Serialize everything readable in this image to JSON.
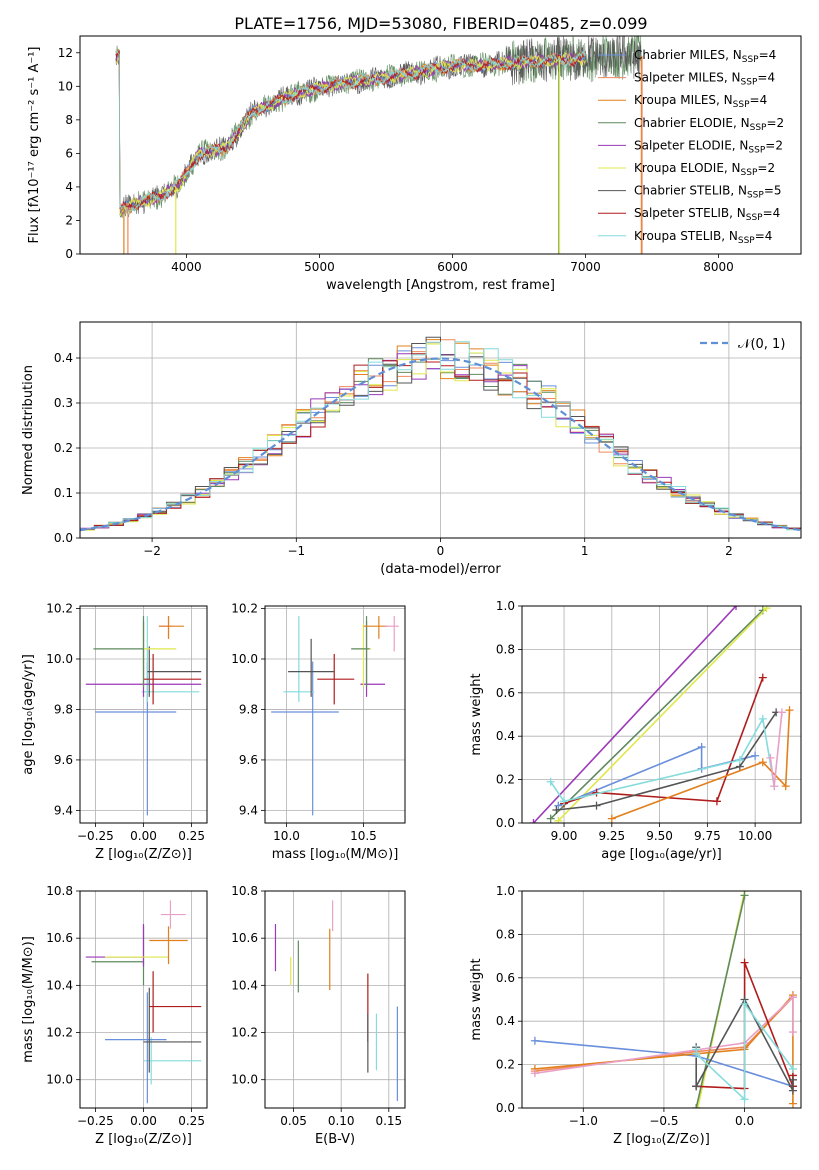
{
  "figure_title": "PLATE=1756, MJD=53080, FIBERID=0485, z=0.099",
  "colors": {
    "chab_miles": "#6a8fdc",
    "salp_miles": "#f08a5d",
    "krou_miles": "#e1801c",
    "chab_elodie": "#5f8a5f",
    "salp_elodie": "#9b39b9",
    "krou_elodie": "#dfe84a",
    "chab_stelib": "#555555",
    "salp_stelib": "#b01c1c",
    "krou_stelib": "#84dcdc",
    "pink": "#e8a0c8",
    "grid": "#b0b0b0",
    "gauss": "#5f8fd6"
  },
  "chart_data": [
    {
      "id": "spectrum",
      "type": "line",
      "title": "PLATE=1756, MJD=53080, FIBERID=0485, z=0.099",
      "xlabel": "wavelength [Angstrom, rest frame]",
      "ylabel": "Flux [fλ10⁻¹⁷ erg cm⁻² s⁻¹ A⁻¹]",
      "xlim": [
        3200,
        8620
      ],
      "ylim": [
        0,
        13
      ],
      "xticks": [
        "4000",
        "5000",
        "6000",
        "7000",
        "8000"
      ],
      "yticks": [
        "0",
        "2",
        "4",
        "6",
        "8",
        "10",
        "12"
      ],
      "grid": false,
      "legend_position": "upper-right",
      "continuum": {
        "x": [
          3500,
          3650,
          3800,
          3950,
          4100,
          4300,
          4500,
          4800,
          5100,
          5400,
          5700,
          6000,
          6300,
          6600,
          6900,
          7200,
          7420
        ],
        "y": [
          2.6,
          3.1,
          3.4,
          4.2,
          6.0,
          6.3,
          8.5,
          9.5,
          10.1,
          10.4,
          10.8,
          11.2,
          11.3,
          11.5,
          11.6,
          11.8,
          11.8
        ]
      },
      "series": [
        {
          "name": "Chabrier MILES, N$_{SSP}$=4",
          "label": "Chabrier MILES, N",
          "sub": "SSP",
          "value": "=4",
          "color_key": "chab_miles"
        },
        {
          "name": "Salpeter MILES, N$_{SSP}$=4",
          "label": "Salpeter MILES, N",
          "sub": "SSP",
          "value": "=4",
          "color_key": "salp_miles"
        },
        {
          "name": "Kroupa MILES, N$_{SSP}$=4",
          "label": "Kroupa MILES, N",
          "sub": "SSP",
          "value": "=4",
          "color_key": "krou_miles"
        },
        {
          "name": "Chabrier ELODIE, N$_{SSP}$=2",
          "label": "Chabrier ELODIE, N",
          "sub": "SSP",
          "value": "=2",
          "color_key": "chab_elodie"
        },
        {
          "name": "Salpeter ELODIE, N$_{SSP}$=2",
          "label": "Salpeter ELODIE, N",
          "sub": "SSP",
          "value": "=2",
          "color_key": "salp_elodie"
        },
        {
          "name": "Kroupa ELODIE, N$_{SSP}$=2",
          "label": "Kroupa ELODIE, N",
          "sub": "SSP",
          "value": "=2",
          "color_key": "krou_elodie"
        },
        {
          "name": "Chabrier STELIB, N$_{SSP}$=5",
          "label": "Chabrier STELIB, N",
          "sub": "SSP",
          "value": "=5",
          "color_key": "chab_stelib"
        },
        {
          "name": "Salpeter STELIB, N$_{SSP}$=4",
          "label": "Salpeter STELIB, N",
          "sub": "SSP",
          "value": "=4",
          "color_key": "salp_stelib"
        },
        {
          "name": "Kroupa STELIB, N$_{SSP}$=4",
          "label": "Kroupa STELIB, N",
          "sub": "SSP",
          "value": "=4",
          "color_key": "krou_stelib"
        }
      ]
    },
    {
      "id": "residuals",
      "type": "histogram",
      "xlabel": "(data-model)/error",
      "ylabel": "Normed distribution",
      "xlim": [
        -2.5,
        2.5
      ],
      "ylim": [
        0,
        0.48
      ],
      "xticks": [
        "−2",
        "−1",
        "0",
        "1",
        "2"
      ],
      "yticks": [
        "0.0",
        "0.1",
        "0.2",
        "0.3",
        "0.4"
      ],
      "grid": true,
      "legend": "𝒩(0, 1)",
      "legend_position": "upper-right",
      "bin_width": 0.1,
      "gaussian": {
        "mean": 0,
        "sigma": 1
      }
    },
    {
      "id": "age_vs_Z",
      "type": "errorbar",
      "xlabel": "Z [log₁₀(Z/Z⊙)]",
      "ylabel": "age  [log₁₀(age/yr)]",
      "xlim": [
        -0.33,
        0.33
      ],
      "ylim": [
        9.35,
        10.21
      ],
      "xticks": [
        "−0.25",
        "0.00",
        "0.25"
      ],
      "yticks": [
        "9.4",
        "9.6",
        "9.8",
        "10.0",
        "10.2"
      ],
      "grid": true,
      "points": [
        {
          "color_key": "chab_miles",
          "x": 0.02,
          "y": 9.79,
          "xerr": [
            0.27,
            0.15
          ],
          "yerr": [
            0.41,
            0.2
          ]
        },
        {
          "color_key": "krou_stelib",
          "x": 0.02,
          "y": 9.87,
          "xerr": [
            0.03,
            0.27
          ],
          "yerr": [
            0.04,
            0.3
          ]
        },
        {
          "color_key": "salp_elodie",
          "x": 0.0,
          "y": 9.9,
          "xerr": [
            0.3,
            0.3
          ],
          "yerr": [
            0.05,
            0.25
          ]
        },
        {
          "color_key": "salp_stelib",
          "x": 0.05,
          "y": 9.92,
          "xerr": [
            0.05,
            0.25
          ],
          "yerr": [
            0.1,
            0.1
          ]
        },
        {
          "color_key": "chab_stelib",
          "x": 0.03,
          "y": 9.95,
          "xerr": [
            0.01,
            0.27
          ],
          "yerr": [
            0.1,
            0.1
          ]
        },
        {
          "color_key": "krou_elodie",
          "x": 0.0,
          "y": 10.04,
          "xerr": [
            0.0,
            0.17
          ],
          "yerr": [
            0.15,
            0.1
          ]
        },
        {
          "color_key": "chab_elodie",
          "x": 0.0,
          "y": 10.04,
          "xerr": [
            0.26,
            0.0
          ],
          "yerr": [
            0.15,
            0.13
          ]
        },
        {
          "color_key": "pink",
          "x": 0.13,
          "y": 10.13,
          "xerr": [
            0.05,
            0.02
          ],
          "yerr": [
            0.05,
            0.04
          ]
        },
        {
          "color_key": "krou_miles",
          "x": 0.13,
          "y": 10.13,
          "xerr": [
            0.05,
            0.08
          ],
          "yerr": [
            0.05,
            0.04
          ]
        }
      ]
    },
    {
      "id": "age_vs_mass",
      "type": "errorbar",
      "xlabel": "mass [log₁₀(M/M⊙)]",
      "ylabel": "",
      "xlim": [
        9.86,
        10.77
      ],
      "ylim": [
        9.35,
        10.21
      ],
      "xticks": [
        "10.0",
        "10.5"
      ],
      "yticks": [
        "9.4",
        "9.6",
        "9.8",
        "10.0",
        "10.2"
      ],
      "grid": true,
      "points": [
        {
          "color_key": "chab_miles",
          "x": 10.17,
          "y": 9.79,
          "xerr": [
            0.27,
            0.17
          ],
          "yerr": [
            0.41,
            0.2
          ]
        },
        {
          "color_key": "krou_stelib",
          "x": 10.08,
          "y": 9.87,
          "xerr": [
            0.1,
            0.1
          ],
          "yerr": [
            0.04,
            0.3
          ]
        },
        {
          "color_key": "salp_stelib",
          "x": 10.31,
          "y": 9.92,
          "xerr": [
            0.11,
            0.13
          ],
          "yerr": [
            0.1,
            0.1
          ]
        },
        {
          "color_key": "chab_stelib",
          "x": 10.16,
          "y": 9.95,
          "xerr": [
            0.15,
            0.15
          ],
          "yerr": [
            0.1,
            0.13
          ]
        },
        {
          "color_key": "salp_elodie",
          "x": 10.52,
          "y": 9.9,
          "xerr": [
            0.04,
            0.12
          ],
          "yerr": [
            0.05,
            0.25
          ]
        },
        {
          "color_key": "krou_elodie",
          "x": 10.5,
          "y": 10.04,
          "xerr": [
            0.05,
            0.05
          ],
          "yerr": [
            0.15,
            0.1
          ]
        },
        {
          "color_key": "chab_elodie",
          "x": 10.52,
          "y": 10.04,
          "xerr": [
            0.1,
            0.02
          ],
          "yerr": [
            0.15,
            0.13
          ]
        },
        {
          "color_key": "krou_miles",
          "x": 10.6,
          "y": 10.13,
          "xerr": [
            0.1,
            0.06
          ],
          "yerr": [
            0.05,
            0.04
          ]
        },
        {
          "color_key": "pink",
          "x": 10.7,
          "y": 10.13,
          "xerr": [
            0.06,
            0.03
          ],
          "yerr": [
            0.1,
            0.04
          ]
        }
      ]
    },
    {
      "id": "weight_vs_age",
      "type": "line",
      "xlabel": "age  [log₁₀(age/yr)]",
      "ylabel": "mass weight",
      "xlim": [
        8.78,
        10.24
      ],
      "ylim": [
        0,
        1
      ],
      "xticks": [
        "9.00",
        "9.25",
        "9.50",
        "9.75",
        "10.00"
      ],
      "yticks": [
        "0.0",
        "0.2",
        "0.4",
        "0.6",
        "0.8",
        "1.0"
      ],
      "grid": true,
      "series": [
        {
          "color_key": "salp_elodie",
          "x": [
            8.84,
            9.9
          ],
          "y": [
            0.0,
            1.0
          ]
        },
        {
          "color_key": "chab_elodie",
          "x": [
            8.93,
            10.04
          ],
          "y": [
            0.02,
            0.98
          ]
        },
        {
          "color_key": "krou_elodie",
          "x": [
            8.97,
            10.06
          ],
          "y": [
            0.01,
            0.99
          ]
        },
        {
          "color_key": "chab_miles",
          "x": [
            8.97,
            9.72,
            9.72,
            10.0
          ],
          "y": [
            0.08,
            0.35,
            0.25,
            0.31
          ]
        },
        {
          "color_key": "salp_stelib",
          "x": [
            9.0,
            9.17,
            9.8,
            10.04
          ],
          "y": [
            0.09,
            0.14,
            0.1,
            0.67
          ]
        },
        {
          "color_key": "chab_stelib",
          "x": [
            8.96,
            9.17,
            9.92,
            10.11
          ],
          "y": [
            0.06,
            0.08,
            0.26,
            0.51
          ]
        },
        {
          "color_key": "krou_stelib",
          "x": [
            8.93,
            9.0,
            9.92,
            10.04,
            10.1
          ],
          "y": [
            0.19,
            0.1,
            0.29,
            0.48,
            0.17
          ]
        },
        {
          "color_key": "krou_miles",
          "x": [
            9.25,
            10.04,
            10.16,
            10.18
          ],
          "y": [
            0.02,
            0.28,
            0.17,
            0.52
          ]
        },
        {
          "color_key": "pink",
          "x": [
            10.08,
            10.1,
            10.14
          ],
          "y": [
            0.3,
            0.17,
            0.51
          ]
        }
      ]
    },
    {
      "id": "mass_vs_Z",
      "type": "errorbar",
      "xlabel": "Z [log₁₀(Z/Z⊙)]",
      "ylabel": "mass [log₁₀(M/M⊙)]",
      "xlim": [
        -0.33,
        0.33
      ],
      "ylim": [
        9.88,
        10.8
      ],
      "xticks": [
        "−0.25",
        "0.00",
        "0.25"
      ],
      "yticks": [
        "10.0",
        "10.2",
        "10.4",
        "10.6",
        "10.8"
      ],
      "grid": true,
      "points": [
        {
          "color_key": "krou_stelib",
          "x": 0.04,
          "y": 10.08,
          "xerr": [
            0.04,
            0.26
          ],
          "yerr": [
            0.1,
            0.1
          ]
        },
        {
          "color_key": "chab_miles",
          "x": 0.02,
          "y": 10.17,
          "xerr": [
            0.22,
            0.1
          ],
          "yerr": [
            0.27,
            0.2
          ]
        },
        {
          "color_key": "chab_stelib",
          "x": 0.03,
          "y": 10.16,
          "xerr": [
            0.03,
            0.27
          ],
          "yerr": [
            0.13,
            0.23
          ]
        },
        {
          "color_key": "salp_stelib",
          "x": 0.05,
          "y": 10.31,
          "xerr": [
            0.02,
            0.25
          ],
          "yerr": [
            0.11,
            0.15
          ]
        },
        {
          "color_key": "chab_elodie",
          "x": 0.0,
          "y": 10.5,
          "xerr": [
            0.27,
            0.0
          ],
          "yerr": [
            0.1,
            0.15
          ]
        },
        {
          "color_key": "salp_elodie",
          "x": 0.0,
          "y": 10.52,
          "xerr": [
            0.3,
            0.0
          ],
          "yerr": [
            0.04,
            0.14
          ]
        },
        {
          "color_key": "krou_elodie",
          "x": 0.0,
          "y": 10.52,
          "xerr": [
            0.2,
            0.13
          ],
          "yerr": [
            0.0,
            0.0
          ]
        },
        {
          "color_key": "krou_miles",
          "x": 0.13,
          "y": 10.59,
          "xerr": [
            0.1,
            0.1
          ],
          "yerr": [
            0.1,
            0.06
          ]
        },
        {
          "color_key": "pink",
          "x": 0.14,
          "y": 10.7,
          "xerr": [
            0.05,
            0.08
          ],
          "yerr": [
            0.06,
            0.06
          ]
        }
      ]
    },
    {
      "id": "mass_vs_ebv",
      "type": "errorbar",
      "xlabel": "E(B-V)",
      "ylabel": "",
      "xlim": [
        0.02,
        0.167
      ],
      "ylim": [
        9.88,
        10.8
      ],
      "xticks": [
        "0.05",
        "0.10",
        "0.15"
      ],
      "yticks": [
        "10.0",
        "10.2",
        "10.4",
        "10.6",
        "10.8"
      ],
      "grid": true,
      "points": [
        {
          "color_key": "salp_elodie",
          "x": 0.031,
          "y": 10.56,
          "xerr": [
            0,
            0
          ],
          "yerr": [
            0.1,
            0.1
          ]
        },
        {
          "color_key": "krou_elodie",
          "x": 0.047,
          "y": 10.46,
          "xerr": [
            0,
            0
          ],
          "yerr": [
            0.06,
            0.06
          ]
        },
        {
          "color_key": "chab_elodie",
          "x": 0.055,
          "y": 10.47,
          "xerr": [
            0,
            0
          ],
          "yerr": [
            0.1,
            0.12
          ]
        },
        {
          "color_key": "krou_miles",
          "x": 0.088,
          "y": 10.5,
          "xerr": [
            0,
            0
          ],
          "yerr": [
            0.12,
            0.14
          ]
        },
        {
          "color_key": "pink",
          "x": 0.091,
          "y": 10.7,
          "xerr": [
            0,
            0
          ],
          "yerr": [
            0.07,
            0.06
          ]
        },
        {
          "color_key": "salp_stelib",
          "x": 0.128,
          "y": 10.3,
          "xerr": [
            0,
            0
          ],
          "yerr": [
            0.14,
            0.15
          ]
        },
        {
          "color_key": "chab_stelib",
          "x": 0.128,
          "y": 10.16,
          "xerr": [
            0,
            0
          ],
          "yerr": [
            0.13,
            0.12
          ]
        },
        {
          "color_key": "krou_stelib",
          "x": 0.137,
          "y": 10.15,
          "xerr": [
            0,
            0
          ],
          "yerr": [
            0.11,
            0.13
          ]
        },
        {
          "color_key": "chab_miles",
          "x": 0.159,
          "y": 10.11,
          "xerr": [
            0,
            0
          ],
          "yerr": [
            0.2,
            0.2
          ]
        }
      ]
    },
    {
      "id": "weight_vs_Z",
      "type": "line",
      "xlabel": "Z [log₁₀(Z/Z⊙)]",
      "ylabel": "mass weight",
      "xlim": [
        -1.38,
        0.35
      ],
      "ylim": [
        0,
        1
      ],
      "xticks": [
        "−1.0",
        "−0.5",
        "0.0"
      ],
      "yticks": [
        "0.0",
        "0.2",
        "0.4",
        "0.6",
        "0.8",
        "1.0"
      ],
      "grid": true,
      "series": [
        {
          "color_key": "krou_elodie",
          "x": [
            -0.29,
            0.0
          ],
          "y": [
            0.0,
            1.0
          ]
        },
        {
          "color_key": "chab_elodie",
          "x": [
            -0.3,
            0.0
          ],
          "y": [
            0.0,
            0.98
          ]
        },
        {
          "color_key": "chab_miles",
          "x": [
            -1.3,
            -0.3,
            0.3
          ],
          "y": [
            0.31,
            0.24,
            0.1
          ]
        },
        {
          "color_key": "salp_miles",
          "x": [
            -1.3,
            -0.3,
            0.0,
            0.3
          ],
          "y": [
            0.17,
            0.26,
            0.28,
            0.51
          ]
        },
        {
          "color_key": "krou_miles",
          "x": [
            -1.3,
            -0.3,
            0.0,
            0.3,
            0.3
          ],
          "y": [
            0.18,
            0.25,
            0.27,
            0.52,
            0.02
          ]
        },
        {
          "color_key": "pink",
          "x": [
            -1.3,
            0.0,
            0.3,
            0.3
          ],
          "y": [
            0.16,
            0.3,
            0.51,
            0.35
          ]
        },
        {
          "color_key": "salp_stelib",
          "x": [
            -0.3,
            0.0,
            0.0,
            0.3,
            0.3
          ],
          "y": [
            0.1,
            0.09,
            0.67,
            0.1,
            0.15
          ]
        },
        {
          "color_key": "chab_stelib",
          "x": [
            -0.3,
            -0.3,
            0.0,
            0.3,
            0.3
          ],
          "y": [
            0.28,
            0.1,
            0.5,
            0.08,
            0.13
          ]
        },
        {
          "color_key": "krou_stelib",
          "x": [
            -0.3,
            -0.3,
            0.0,
            0.0,
            0.3
          ],
          "y": [
            0.27,
            0.25,
            0.04,
            0.48,
            0.18
          ]
        }
      ]
    }
  ]
}
